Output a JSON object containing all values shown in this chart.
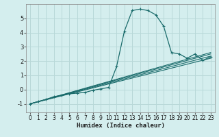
{
  "xlabel": "Humidex (Indice chaleur)",
  "background_color": "#d4eeee",
  "grid_color": "#b8d8d8",
  "line_color": "#1a6b6b",
  "xlim": [
    -0.5,
    23.5
  ],
  "ylim": [
    -1.6,
    6.0
  ],
  "xticks": [
    0,
    1,
    2,
    3,
    4,
    5,
    6,
    7,
    8,
    9,
    10,
    11,
    12,
    13,
    14,
    15,
    16,
    17,
    18,
    19,
    20,
    21,
    22,
    23
  ],
  "yticks": [
    -1,
    0,
    1,
    2,
    3,
    4,
    5
  ],
  "main_curve_x": [
    0,
    1,
    2,
    3,
    4,
    5,
    6,
    7,
    8,
    9,
    10,
    11,
    12,
    13,
    14,
    15,
    16,
    17,
    18,
    19,
    20,
    21,
    22,
    23
  ],
  "main_curve_y": [
    -1.0,
    -0.85,
    -0.7,
    -0.5,
    -0.4,
    -0.3,
    -0.25,
    -0.2,
    -0.05,
    0.05,
    0.15,
    1.6,
    4.1,
    5.55,
    5.65,
    5.55,
    5.25,
    4.45,
    2.6,
    2.5,
    2.2,
    2.5,
    2.05,
    2.3
  ],
  "trend_lines": [
    {
      "x": [
        0,
        23
      ],
      "y": [
        -1.0,
        2.2
      ]
    },
    {
      "x": [
        0,
        23
      ],
      "y": [
        -1.0,
        2.35
      ]
    },
    {
      "x": [
        0,
        23
      ],
      "y": [
        -1.0,
        2.5
      ]
    },
    {
      "x": [
        0,
        23
      ],
      "y": [
        -1.0,
        2.6
      ]
    }
  ]
}
